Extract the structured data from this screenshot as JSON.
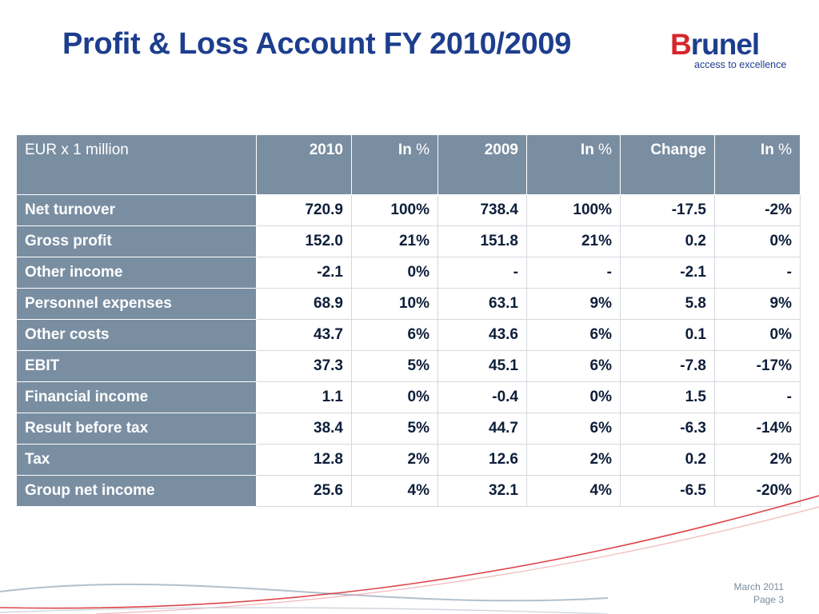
{
  "title": "Profit & Loss Account FY 2010/2009",
  "logo": {
    "word_b": "B",
    "word_rest": "runel",
    "tagline": "access to excellence"
  },
  "table": {
    "headers": [
      "EUR x 1 million",
      "2010",
      "In",
      "2009",
      "In",
      "Change",
      "In"
    ],
    "pct_symbol": "%",
    "rows": [
      {
        "label": "Net turnover",
        "values": [
          "720.9",
          "100%",
          "738.4",
          "100%",
          "-17.5",
          "-2%"
        ]
      },
      {
        "label": "Gross profit",
        "values": [
          "152.0",
          "21%",
          "151.8",
          "21%",
          "0.2",
          "0%"
        ]
      },
      {
        "label": "Other income",
        "values": [
          "-2.1",
          "0%",
          "-",
          "-",
          "-2.1",
          "-"
        ]
      },
      {
        "label": "Personnel expenses",
        "values": [
          "68.9",
          "10%",
          "63.1",
          "9%",
          "5.8",
          "9%"
        ]
      },
      {
        "label": "Other costs",
        "values": [
          "43.7",
          "6%",
          "43.6",
          "6%",
          "0.1",
          "0%"
        ]
      },
      {
        "label": "EBIT",
        "values": [
          "37.3",
          "5%",
          "45.1",
          "6%",
          "-7.8",
          "-17%"
        ]
      },
      {
        "label": "Financial income",
        "values": [
          "1.1",
          "0%",
          "-0.4",
          "0%",
          "1.5",
          "-"
        ]
      },
      {
        "label": "Result before tax",
        "values": [
          "38.4",
          "5%",
          "44.7",
          "6%",
          "-6.3",
          "-14%"
        ]
      },
      {
        "label": "Tax",
        "values": [
          "12.8",
          "2%",
          "12.6",
          "2%",
          "0.2",
          "2%"
        ]
      },
      {
        "label": "Group net income",
        "values": [
          "25.6",
          "4%",
          "32.1",
          "4%",
          "-6.5",
          "-20%"
        ]
      }
    ]
  },
  "footer": {
    "date": "March 2011",
    "page": "Page 3"
  },
  "colors": {
    "title": "#1d3e8e",
    "logo_accent": "#d7262c",
    "header_fill": "#7a8ea2",
    "value_text": "#0e1e3a",
    "swoosh_red": "#d7262c",
    "swoosh_grey": "#9aa9ba"
  }
}
